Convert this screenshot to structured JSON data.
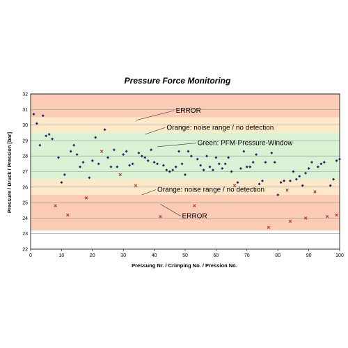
{
  "chart_data": {
    "type": "scatter",
    "title": "Pressure Force Monitoring",
    "xlabel": "Pressung Nr. / Crimping No. / Pression No.",
    "ylabel": "Pressure / Druck / Pression [bar]",
    "xlim": [
      0,
      100
    ],
    "ylim": [
      22,
      32
    ],
    "x_ticks": [
      "0",
      "10",
      "20",
      "30",
      "40",
      "50",
      "60",
      "70",
      "80",
      "90",
      "100"
    ],
    "y_ticks": [
      "22",
      "23",
      "24",
      "25",
      "26",
      "27",
      "28",
      "29",
      "30",
      "31",
      "32"
    ],
    "grid": true,
    "bands": [
      {
        "name": "error-upper",
        "y": [
          30.5,
          32
        ],
        "color": "#fbcbb6"
      },
      {
        "name": "orange-upper",
        "y": [
          29.5,
          30.5
        ],
        "color": "#fde8c8"
      },
      {
        "name": "green",
        "y": [
          26.5,
          29.5
        ],
        "color": "#d9f2d3"
      },
      {
        "name": "orange-lower",
        "y": [
          25.5,
          26.5
        ],
        "color": "#fde8c8"
      },
      {
        "name": "error-lower",
        "y": [
          23.2,
          25.5
        ],
        "color": "#fbcbb6"
      }
    ],
    "annotations": [
      {
        "text": "ERROR",
        "x": 47,
        "y": 30.8,
        "line_to": [
          34,
          30.3
        ]
      },
      {
        "text": "Orange:  noise range / no detection",
        "x": 44,
        "y": 29.7,
        "line_to": [
          37,
          29.4
        ]
      },
      {
        "text": "Green: PFM-Pressure-Window",
        "x": 54,
        "y": 28.7,
        "line_to": [
          41,
          28.6
        ]
      },
      {
        "text": "Orange:  noise range / no detection",
        "x": 41,
        "y": 25.7,
        "line_to": [
          36,
          25.5
        ]
      },
      {
        "text": "ERROR",
        "x": 49,
        "y": 24,
        "line_to": [
          42,
          24.9
        ]
      }
    ],
    "series": [
      {
        "marker": "diamond",
        "color": "#1f2a6b",
        "points": [
          [
            1,
            30.7
          ],
          [
            2,
            30.1
          ],
          [
            3,
            28.7
          ],
          [
            4,
            30.6
          ],
          [
            5,
            29.3
          ],
          [
            6,
            29.4
          ],
          [
            7,
            29.1
          ],
          [
            9,
            27.9
          ],
          [
            10,
            26.3
          ],
          [
            11,
            26.8
          ],
          [
            13,
            28.3
          ],
          [
            14,
            28.7
          ],
          [
            15,
            28.1
          ],
          [
            16,
            27.3
          ],
          [
            17,
            27.6
          ],
          [
            19,
            26.6
          ],
          [
            20,
            27.7
          ],
          [
            21,
            29.2
          ],
          [
            22,
            27.5
          ],
          [
            24,
            29.7
          ],
          [
            25,
            27.9
          ],
          [
            26,
            27.3
          ],
          [
            27,
            28.4
          ],
          [
            28,
            27.3
          ],
          [
            30,
            28.1
          ],
          [
            31,
            28.3
          ],
          [
            32,
            27.4
          ],
          [
            33,
            27.5
          ],
          [
            35,
            28.2
          ],
          [
            36,
            28.0
          ],
          [
            37,
            27.9
          ],
          [
            38,
            27.7
          ],
          [
            39,
            28.4
          ],
          [
            40,
            27.6
          ],
          [
            41,
            27.5
          ],
          [
            43,
            27.4
          ],
          [
            44,
            27.1
          ],
          [
            45,
            27.0
          ],
          [
            46,
            27.1
          ],
          [
            47,
            27.3
          ],
          [
            48,
            28.3
          ],
          [
            49,
            27.5
          ],
          [
            50,
            26.8
          ],
          [
            51,
            28.3
          ],
          [
            52,
            28.0
          ],
          [
            54,
            27.8
          ],
          [
            55,
            27.4
          ],
          [
            56,
            27.1
          ],
          [
            57,
            28.0
          ],
          [
            58,
            27.3
          ],
          [
            59,
            27.1
          ],
          [
            60,
            27.9
          ],
          [
            61,
            27.5
          ],
          [
            62,
            27.2
          ],
          [
            63,
            27.5
          ],
          [
            64,
            27.9
          ],
          [
            65,
            27.0
          ],
          [
            67,
            26.3
          ],
          [
            68,
            27.2
          ],
          [
            69,
            28.3
          ],
          [
            70,
            27.3
          ],
          [
            71,
            27.3
          ],
          [
            72,
            27.6
          ],
          [
            73,
            28.1
          ],
          [
            74,
            26.2
          ],
          [
            75,
            26.4
          ],
          [
            76,
            27.6
          ],
          [
            78,
            28.2
          ],
          [
            79,
            27.6
          ],
          [
            80,
            25.5
          ],
          [
            81,
            26.3
          ],
          [
            82,
            26.4
          ],
          [
            84,
            26.4
          ],
          [
            85,
            27.0
          ],
          [
            86,
            26.5
          ],
          [
            87,
            26.7
          ],
          [
            88,
            26.1
          ],
          [
            89,
            26.9
          ],
          [
            90,
            27.2
          ],
          [
            91,
            27.6
          ],
          [
            93,
            27.3
          ],
          [
            94,
            27.5
          ],
          [
            95,
            27.6
          ],
          [
            97,
            26.1
          ],
          [
            98,
            26.5
          ],
          [
            99,
            27.7
          ],
          [
            100,
            27.8
          ]
        ]
      },
      {
        "marker": "x",
        "color": "#c0392b",
        "points": [
          [
            8,
            24.8
          ],
          [
            12,
            24.2
          ],
          [
            18,
            25.3
          ],
          [
            23,
            28.3
          ],
          [
            29,
            26.8
          ],
          [
            34,
            26.1
          ],
          [
            42,
            24.1
          ],
          [
            53,
            24.8
          ],
          [
            66,
            26.1
          ],
          [
            77,
            23.4
          ],
          [
            83,
            25.8
          ],
          [
            84,
            23.8
          ],
          [
            89,
            24.0
          ],
          [
            92,
            25.7
          ],
          [
            96,
            24.1
          ],
          [
            99,
            24.2
          ]
        ]
      }
    ]
  }
}
